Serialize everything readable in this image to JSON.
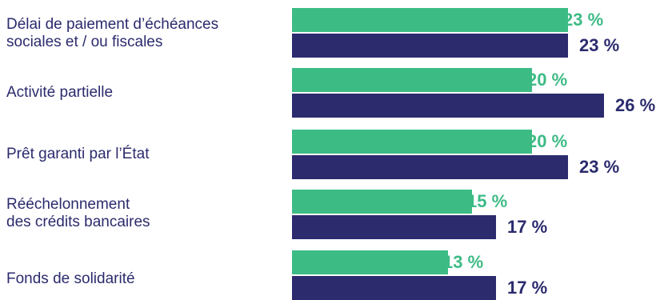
{
  "chart_data": {
    "type": "bar",
    "orientation": "horizontal",
    "categories": [
      "Délai de paiement d’échéances\nsociales et / ou fiscales",
      "Activité partielle",
      "Prêt garanti par l’État",
      "Rééchelonnement\ndes crédits bancaires",
      "Fonds de solidarité"
    ],
    "series": [
      {
        "color": "#3dbb85",
        "values": [
          23,
          20,
          20,
          15,
          13
        ],
        "labels": [
          "23 %",
          "20 %",
          "20 %",
          "15 %",
          "13 %"
        ]
      },
      {
        "color": "#2b2b6e",
        "values": [
          23,
          26,
          23,
          17,
          17
        ],
        "labels": [
          "23 %",
          "26 %",
          "23 %",
          "17 %",
          "17 %"
        ]
      }
    ],
    "xlim": [
      0,
      30
    ],
    "grid": false,
    "legend": "none"
  }
}
